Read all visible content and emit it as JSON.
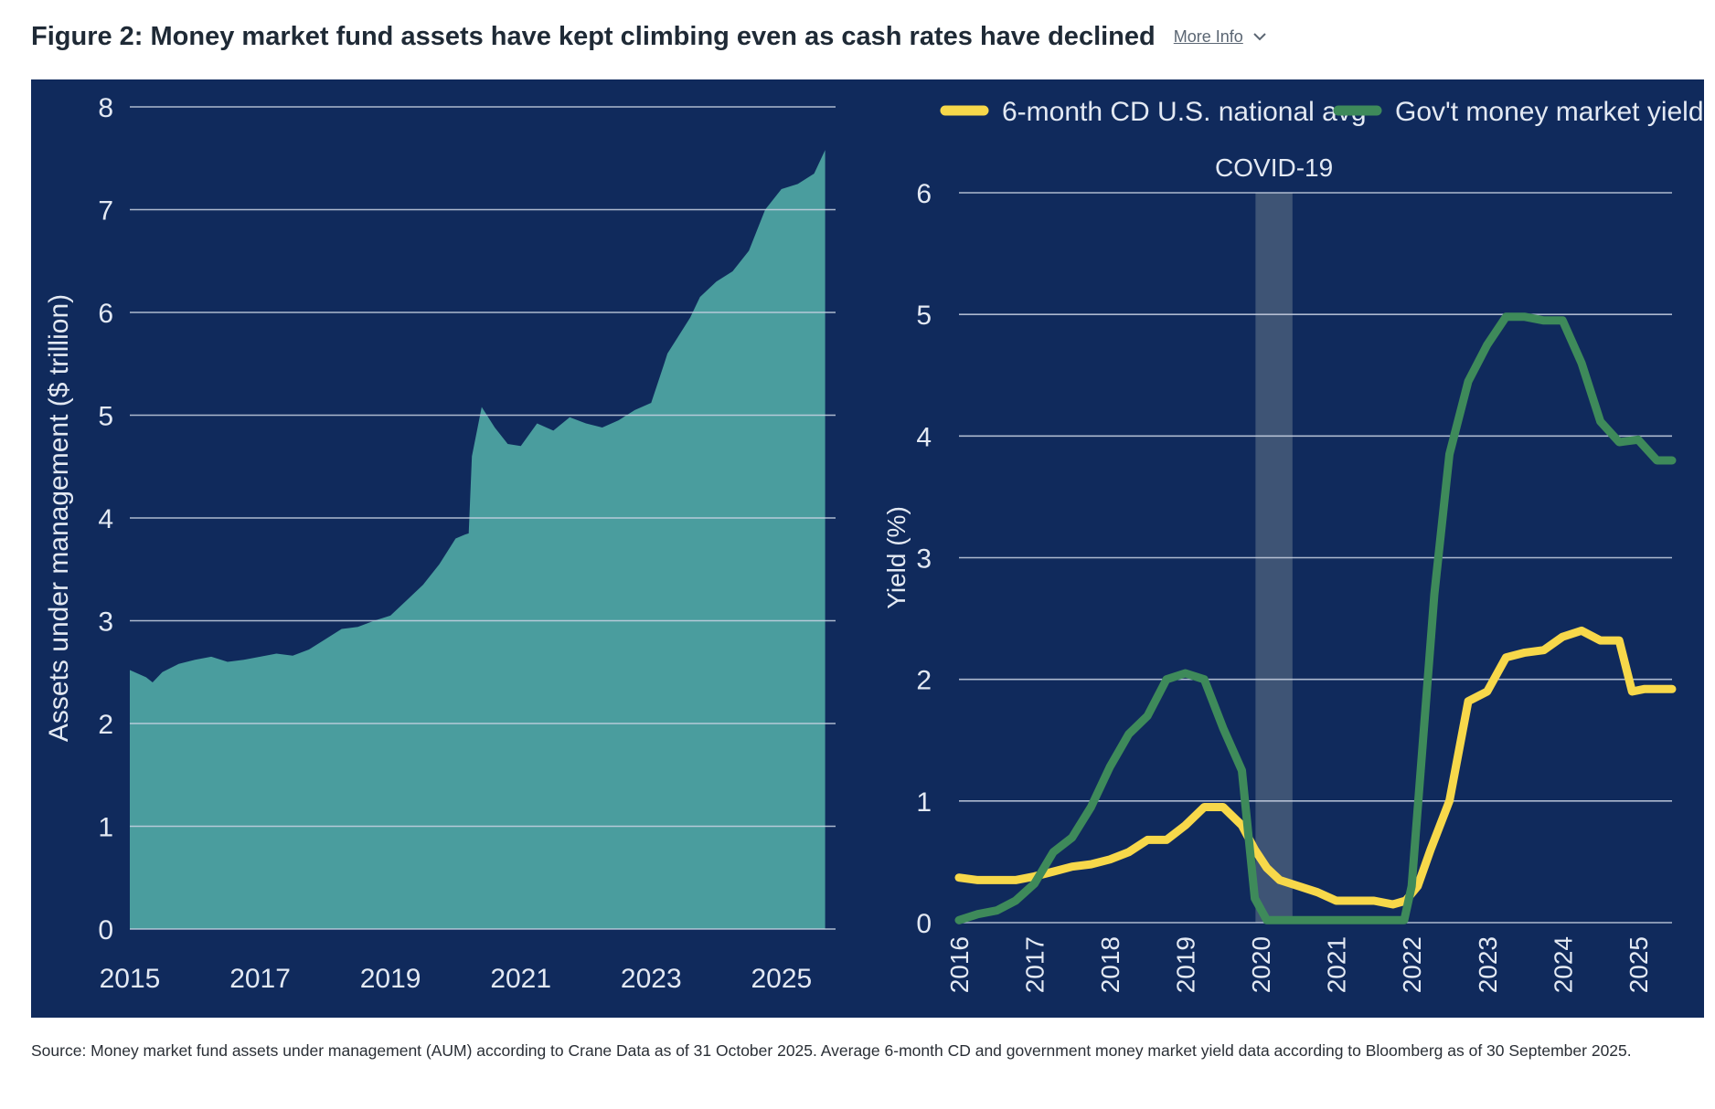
{
  "header": {
    "title": "Figure 2: Money market fund assets have kept climbing even as cash rates have declined",
    "more_info_label": "More Info",
    "more_info_icon": "chevron-down-icon"
  },
  "source_note": "Source: Money market fund assets under management (AUM) according to Crane Data as of 31 October 2025. Average 6-month CD and government money market yield data according to Bloomberg as of 30 September 2025.",
  "colors": {
    "background": "#102a5c",
    "area_fill": "#4a9d9e",
    "cd_line": "#f7d84a",
    "gov_line": "#3e8a5a",
    "covid_band": "#3e5475",
    "grid": "#c9d2e3",
    "text": "#e3e9f3"
  },
  "chart_data": [
    {
      "type": "area",
      "title": "",
      "xlabel": "",
      "ylabel": "Assets under management ($ trillion)",
      "ylim": [
        0,
        8
      ],
      "xlim": [
        2015,
        2025.83
      ],
      "yticks": [
        "0",
        "1",
        "2",
        "3",
        "4",
        "5",
        "6",
        "7",
        "8"
      ],
      "xticks": [
        "2015",
        "2017",
        "2019",
        "2021",
        "2023",
        "2025"
      ],
      "grid": true,
      "series": [
        {
          "x": [
            2015.0,
            2015.25,
            2015.35,
            2015.5,
            2015.75,
            2016.0,
            2016.25,
            2016.5,
            2016.75,
            2017.0,
            2017.25,
            2017.5,
            2017.75,
            2018.0,
            2018.25,
            2018.5,
            2018.75,
            2019.0,
            2019.25,
            2019.5,
            2019.75,
            2020.0,
            2020.15,
            2020.2,
            2020.25,
            2020.4,
            2020.6,
            2020.8,
            2021.0,
            2021.25,
            2021.5,
            2021.75,
            2022.0,
            2022.25,
            2022.5,
            2022.75,
            2023.0,
            2023.2,
            2023.25,
            2023.4,
            2023.6,
            2023.75,
            2024.0,
            2024.25,
            2024.5,
            2024.75,
            2025.0,
            2025.25,
            2025.5,
            2025.67
          ],
          "y": [
            2.52,
            2.45,
            2.4,
            2.5,
            2.58,
            2.62,
            2.65,
            2.6,
            2.62,
            2.65,
            2.68,
            2.66,
            2.72,
            2.82,
            2.92,
            2.94,
            3.0,
            3.05,
            3.2,
            3.35,
            3.55,
            3.8,
            3.84,
            3.85,
            4.6,
            5.08,
            4.88,
            4.72,
            4.7,
            4.92,
            4.85,
            4.98,
            4.92,
            4.88,
            4.95,
            5.05,
            5.12,
            5.5,
            5.6,
            5.75,
            5.95,
            6.15,
            6.3,
            6.4,
            6.6,
            7.0,
            7.2,
            7.25,
            7.35,
            7.58
          ]
        }
      ]
    },
    {
      "type": "line",
      "title": "",
      "xlabel": "",
      "ylabel": "Yield (%)",
      "ylim": [
        0,
        6
      ],
      "xlim": [
        2016,
        2025.45
      ],
      "yticks": [
        "0",
        "1",
        "2",
        "3",
        "4",
        "5",
        "6"
      ],
      "xticks": [
        "2016",
        "2017",
        "2018",
        "2019",
        "2020",
        "2021",
        "2022",
        "2023",
        "2024",
        "2025"
      ],
      "grid": true,
      "legend": "top",
      "annotation": {
        "label": "COVID-19",
        "x_start": 2019.93,
        "x_end": 2020.42
      },
      "series": [
        {
          "name": "6-month CD U.S. national avg",
          "x": [
            2016.0,
            2016.25,
            2016.5,
            2016.75,
            2017.0,
            2017.25,
            2017.5,
            2017.75,
            2018.0,
            2018.25,
            2018.5,
            2018.75,
            2019.0,
            2019.25,
            2019.5,
            2019.75,
            2019.92,
            2020.08,
            2020.25,
            2020.5,
            2020.75,
            2021.0,
            2021.25,
            2021.5,
            2021.75,
            2021.92,
            2022.08,
            2022.25,
            2022.5,
            2022.75,
            2023.0,
            2023.25,
            2023.5,
            2023.75,
            2024.0,
            2024.25,
            2024.5,
            2024.75,
            2024.92,
            2025.08,
            2025.25,
            2025.45
          ],
          "y": [
            0.37,
            0.35,
            0.35,
            0.35,
            0.38,
            0.42,
            0.46,
            0.48,
            0.52,
            0.58,
            0.68,
            0.68,
            0.8,
            0.95,
            0.95,
            0.8,
            0.6,
            0.45,
            0.35,
            0.3,
            0.25,
            0.18,
            0.18,
            0.18,
            0.15,
            0.18,
            0.3,
            0.6,
            1.0,
            1.82,
            1.9,
            2.18,
            2.22,
            2.24,
            2.35,
            2.4,
            2.32,
            2.32,
            1.9,
            1.92,
            1.92,
            1.92
          ]
        },
        {
          "name": "Gov't money market yield",
          "x": [
            2016.0,
            2016.25,
            2016.5,
            2016.75,
            2017.0,
            2017.25,
            2017.5,
            2017.75,
            2018.0,
            2018.25,
            2018.5,
            2018.75,
            2019.0,
            2019.25,
            2019.5,
            2019.75,
            2019.92,
            2020.08,
            2020.25,
            2020.5,
            2020.75,
            2021.0,
            2021.25,
            2021.5,
            2021.75,
            2021.9,
            2022.0,
            2022.15,
            2022.3,
            2022.5,
            2022.75,
            2023.0,
            2023.25,
            2023.5,
            2023.75,
            2024.0,
            2024.25,
            2024.5,
            2024.75,
            2025.0,
            2025.25,
            2025.45
          ],
          "y": [
            0.02,
            0.07,
            0.1,
            0.18,
            0.32,
            0.58,
            0.7,
            0.95,
            1.28,
            1.55,
            1.7,
            2.0,
            2.05,
            2.0,
            1.6,
            1.25,
            0.2,
            0.02,
            0.02,
            0.02,
            0.02,
            0.02,
            0.02,
            0.02,
            0.02,
            0.02,
            0.3,
            1.5,
            2.7,
            3.85,
            4.45,
            4.75,
            4.98,
            4.98,
            4.95,
            4.95,
            4.6,
            4.12,
            3.95,
            3.97,
            3.8,
            3.8
          ]
        }
      ]
    }
  ]
}
